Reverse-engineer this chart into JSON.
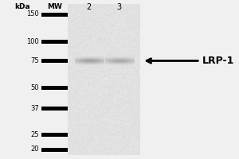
{
  "background_color": "#f0f0f0",
  "blot_bg_color": "#e8e6e3",
  "kda_label": "kDa",
  "mw_label": "MW",
  "lane_labels": [
    "2",
    "3"
  ],
  "marker_kda": [
    150,
    100,
    75,
    50,
    37,
    25,
    20
  ],
  "font_color": "#000000",
  "band_lane2_intensity": 0.45,
  "band_lane3_intensity": 0.4,
  "label_text": "LRP-1",
  "arrow_color": "#000000"
}
